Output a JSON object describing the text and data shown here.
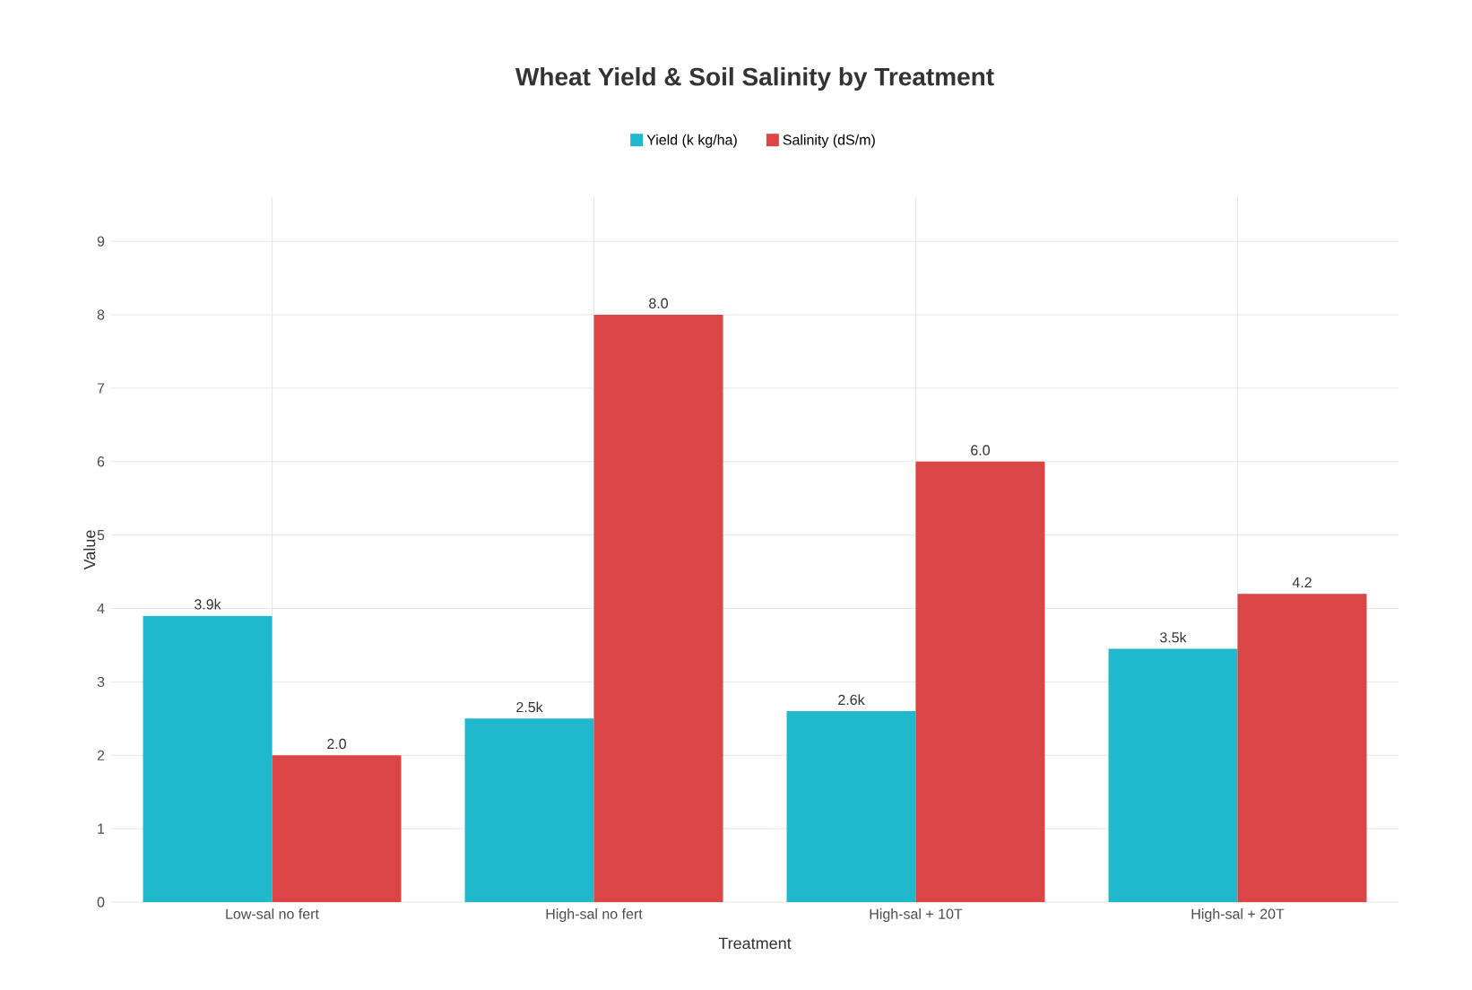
{
  "chart_data": {
    "type": "bar",
    "title": "Wheat Yield & Soil Salinity by Treatment",
    "xlabel": "Treatment",
    "ylabel": "Value",
    "categories": [
      "Low-sal no fert",
      "High-sal no fert",
      "High-sal + 10T",
      "High-sal + 20T"
    ],
    "series": [
      {
        "name": "Yield (k kg/ha)",
        "color": "#1fb8cd",
        "values": [
          3.9,
          2.5,
          2.6,
          3.45
        ],
        "value_labels": [
          "3.9k",
          "2.5k",
          "2.6k",
          "3.5k"
        ]
      },
      {
        "name": "Salinity (dS/m)",
        "color": "#db4545",
        "values": [
          2.0,
          8.0,
          6.0,
          4.2
        ],
        "value_labels": [
          "2.0",
          "8.0",
          "6.0",
          "4.2"
        ]
      }
    ],
    "ylim": [
      0,
      9.6
    ],
    "yticks": [
      0,
      1,
      2,
      3,
      4,
      5,
      6,
      7,
      8,
      9
    ],
    "grid": true,
    "legend": "top"
  }
}
